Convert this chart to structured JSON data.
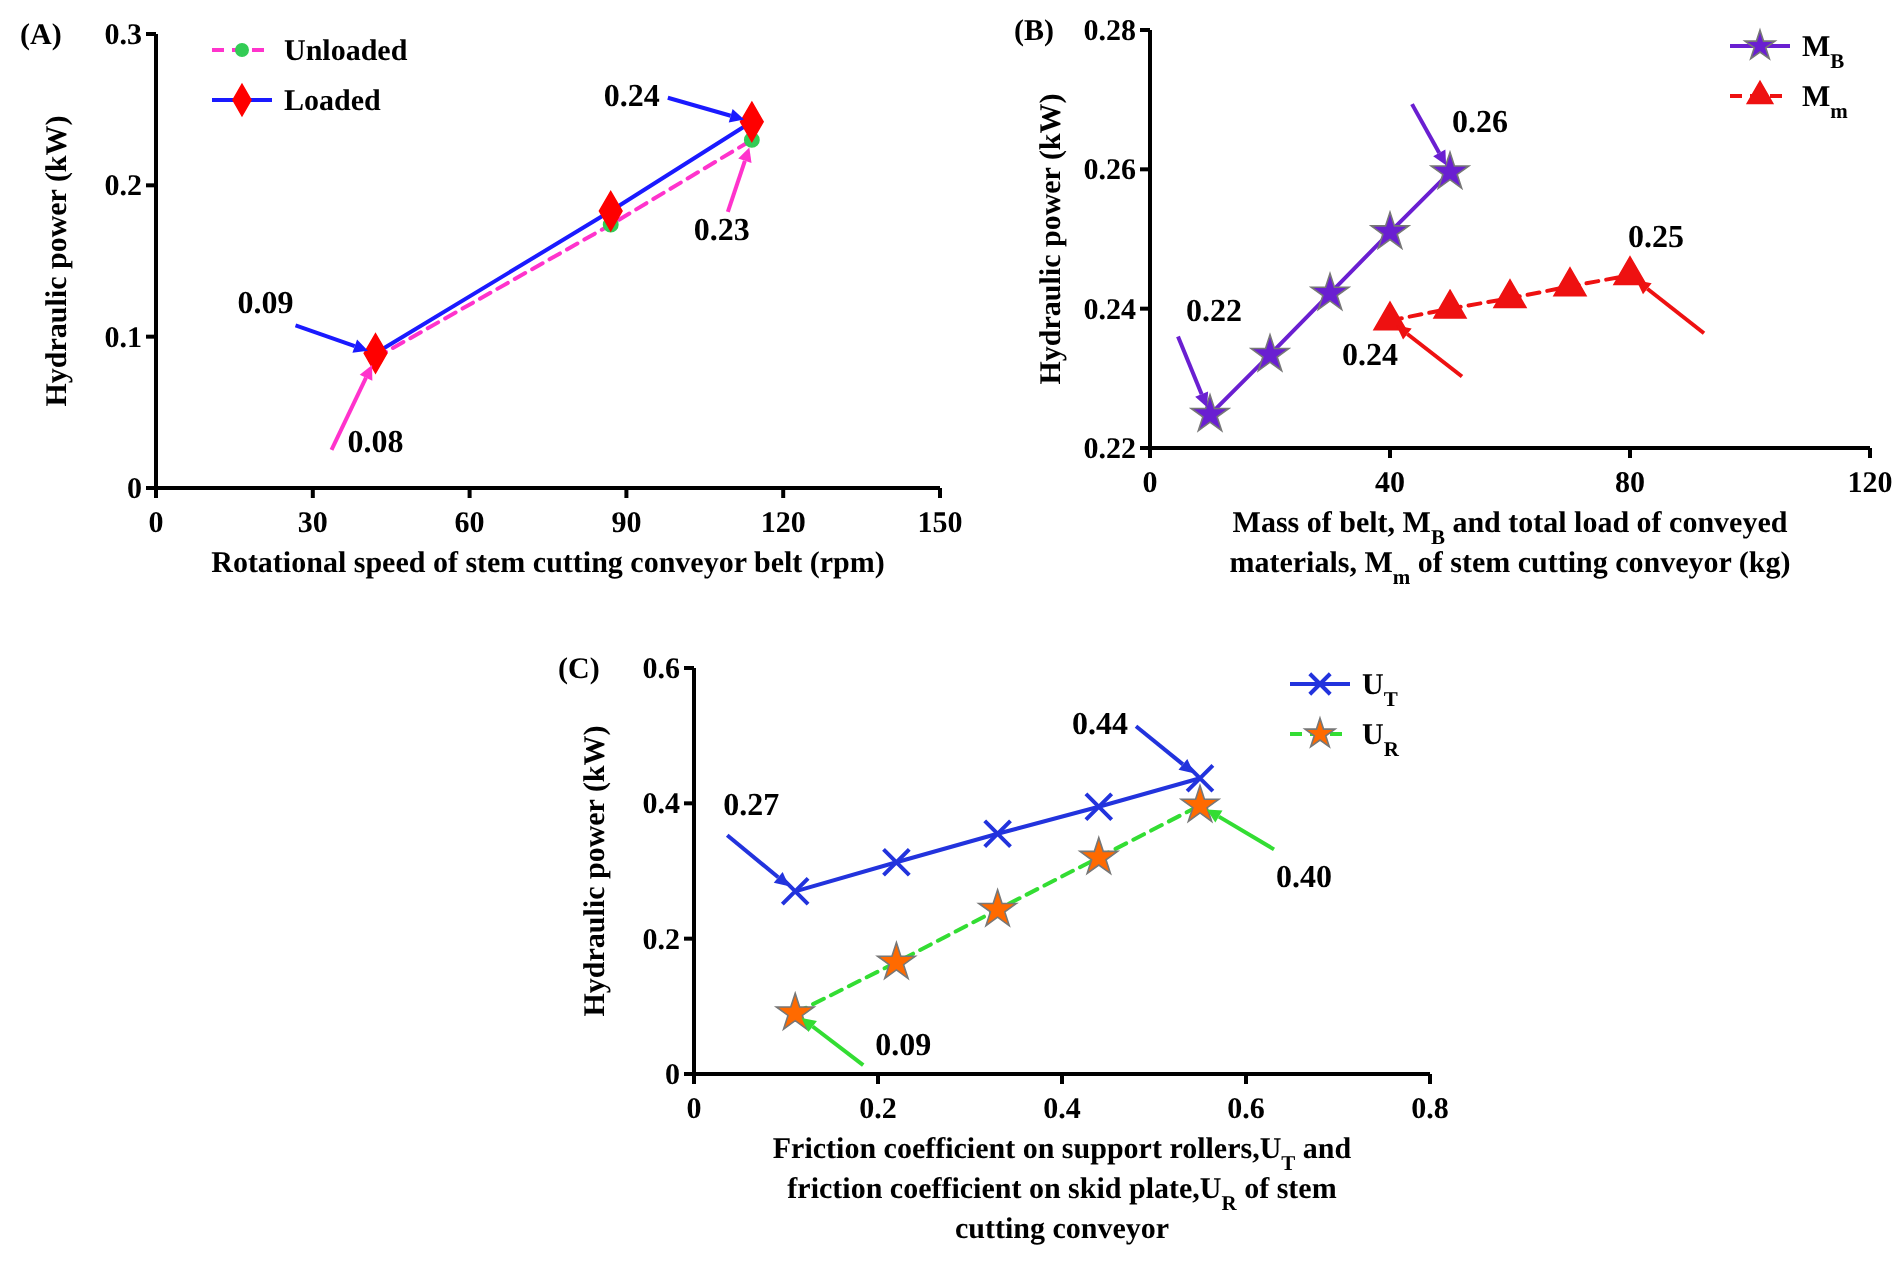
{
  "chart_data": [
    {
      "type": "line",
      "title": "(A)",
      "xlabel": "Rotational speed of stem cutting conveyor belt (rpm)",
      "ylabel": "Hydraulic power (kW)",
      "xlim": [
        0,
        150
      ],
      "xticks": [
        0,
        30,
        60,
        90,
        120,
        150
      ],
      "ylim": [
        0,
        0.3
      ],
      "yticks": [
        0,
        0.1,
        0.2,
        0.3
      ],
      "x": [
        42,
        87,
        114
      ],
      "legend": "top left",
      "grid": false,
      "series": [
        {
          "name": "Unloaded",
          "color": "#ff33cc",
          "colors": [
            "#33cc55",
            "#33cc55",
            "#33cc55"
          ],
          "values": [
            0.086,
            0.174,
            0.23
          ],
          "marker": "circle",
          "line_style": "dashed"
        },
        {
          "name": "Loaded",
          "color": "#1a1aff",
          "colors": [
            "#ff0000",
            "#ff0000",
            "#ff0000"
          ],
          "values": [
            0.089,
            0.183,
            0.242
          ],
          "marker": "diamond",
          "line_style": "solid"
        }
      ],
      "annotations": [
        {
          "text": "0.09",
          "x": 42,
          "y": 0.089
        },
        {
          "text": "0.08",
          "x": 42,
          "y": 0.086
        },
        {
          "text": "0.24",
          "x": 114,
          "y": 0.242
        },
        {
          "text": "0.23",
          "x": 114,
          "y": 0.23
        }
      ]
    },
    {
      "type": "line",
      "title": "(B)",
      "xlabel": "Mass of belt, M$_{B}$ and total load of conveyed materials, M$_{m}$ of stem cutting conveyor (kg)",
      "ylabel": "Hydraulic power (kW)",
      "xlim": [
        0,
        120
      ],
      "xticks": [
        0,
        40,
        80,
        120
      ],
      "ylim": [
        0.22,
        0.28
      ],
      "yticks": [
        0.22,
        0.24,
        0.26,
        0.28
      ],
      "legend": "top right",
      "grid": false,
      "series": [
        {
          "name": "M$_{B}$",
          "color": "#6a1fd1",
          "x": [
            10,
            20,
            30,
            40,
            50
          ],
          "values": [
            0.2248,
            0.2334,
            0.2422,
            0.251,
            0.2596
          ],
          "marker": "star",
          "line_style": "solid"
        },
        {
          "name": "M$_{m}$",
          "color": "#ee1111",
          "x": [
            40,
            50,
            60,
            70,
            80
          ],
          "values": [
            0.2383,
            0.24,
            0.2415,
            0.2432,
            0.2448
          ],
          "marker": "triangle",
          "line_style": "dashed"
        }
      ],
      "annotations": [
        {
          "text": "0.22",
          "x": 10,
          "y": 0.2248
        },
        {
          "text": "0.26",
          "x": 50,
          "y": 0.2596
        },
        {
          "text": "0.24",
          "x": 40,
          "y": 0.2383
        },
        {
          "text": "0.25",
          "x": 80,
          "y": 0.2448
        }
      ]
    },
    {
      "type": "line",
      "title": "(C)",
      "xlabel": "Friction coefficient on support rollers,U$_{T}$ and friction coefficient on skid plate,U$_{R}$ of stem cutting conveyor",
      "ylabel": "Hydraulic power (kW)",
      "xlim": [
        0,
        0.8
      ],
      "xticks": [
        0,
        0.2,
        0.4,
        0.6,
        0.8
      ],
      "ylim": [
        0,
        0.6
      ],
      "yticks": [
        0,
        0.2,
        0.4,
        0.6
      ],
      "x": [
        0.11,
        0.22,
        0.33,
        0.44,
        0.55
      ],
      "legend": "top right",
      "grid": false,
      "series": [
        {
          "name": "U$_{T}$",
          "color": "#2233dd",
          "values": [
            0.27,
            0.313,
            0.355,
            0.395,
            0.437
          ],
          "marker": "cross",
          "line_style": "solid"
        },
        {
          "name": "U$_{R}$",
          "color": "#33dd33",
          "colors": [
            "#ff6a00",
            "#ff6a00",
            "#ff6a00",
            "#ff6a00",
            "#ff6a00"
          ],
          "values": [
            0.09,
            0.165,
            0.243,
            0.32,
            0.397
          ],
          "marker": "star",
          "line_style": "dashed"
        }
      ],
      "annotations": [
        {
          "text": "0.27",
          "x": 0.11,
          "y": 0.27
        },
        {
          "text": "0.44",
          "x": 0.55,
          "y": 0.437
        },
        {
          "text": "0.40",
          "x": 0.55,
          "y": 0.397
        },
        {
          "text": "0.09",
          "x": 0.11,
          "y": 0.09
        }
      ]
    }
  ]
}
